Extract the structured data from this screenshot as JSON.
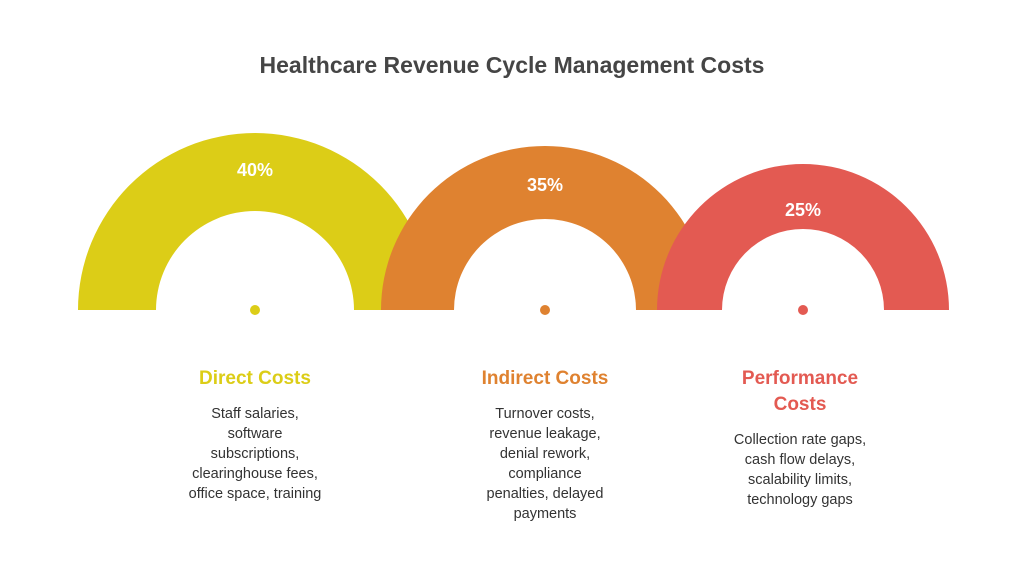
{
  "title": "Healthcare Revenue Cycle Management Costs",
  "segments": [
    {
      "percent": "40%",
      "value": 40,
      "color": "#dccd17",
      "heading": "Direct Costs",
      "description": [
        "Staff salaries,",
        "software",
        "subscriptions,",
        "clearinghouse fees,",
        "office space, training"
      ]
    },
    {
      "percent": "35%",
      "value": 35,
      "color": "#df8230",
      "heading": "Indirect Costs",
      "description": [
        "Turnover costs,",
        "revenue leakage,",
        "denial rework,",
        "compliance",
        "penalties, delayed",
        "payments"
      ]
    },
    {
      "percent": "25%",
      "value": 25,
      "color": "#e35a52",
      "heading": "Performance Costs",
      "heading_lines": [
        "Performance",
        "Costs"
      ],
      "description": [
        "Collection rate gaps,",
        "cash flow delays,",
        "scalability limits,",
        "technology gaps"
      ]
    }
  ]
}
